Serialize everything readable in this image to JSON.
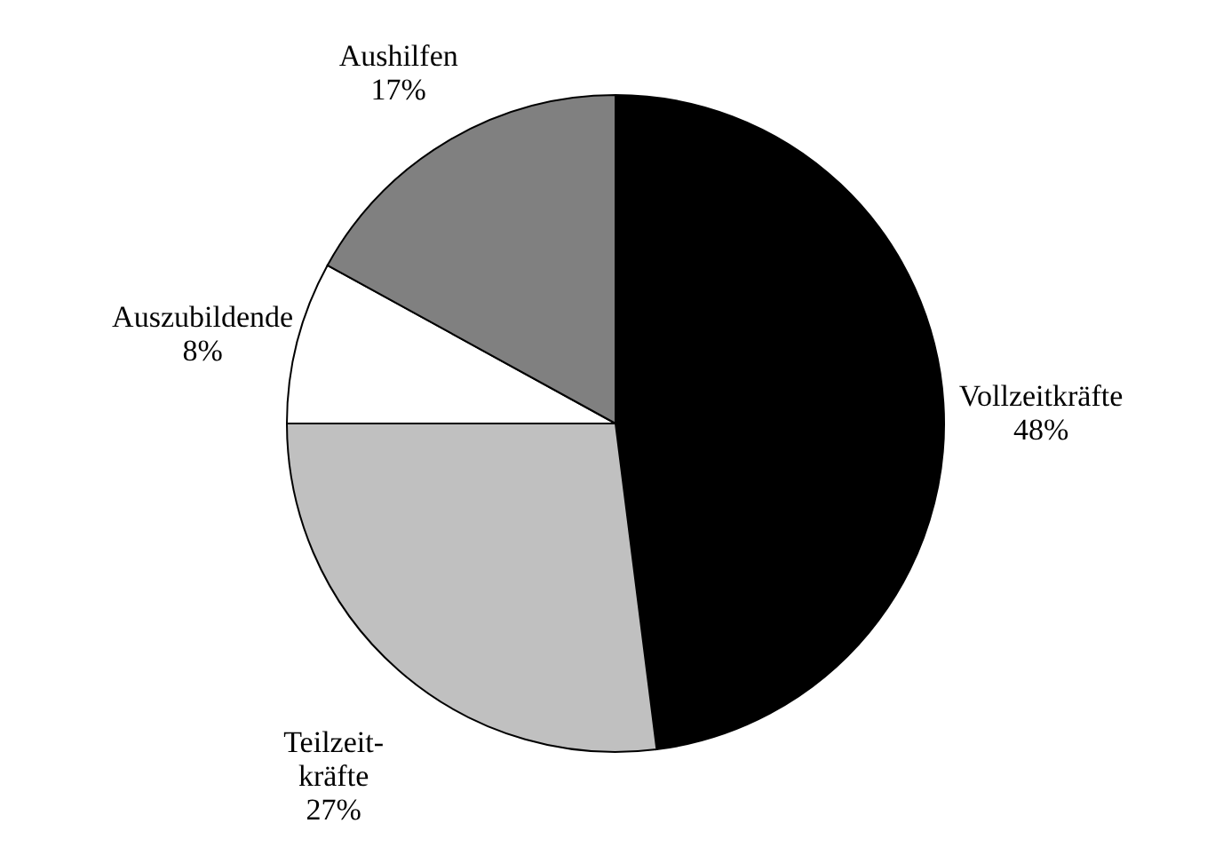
{
  "chart_data": {
    "type": "pie",
    "categories": [
      "Vollzeitkräfte",
      "Teilzeit-\nkräfte",
      "Auszubildende",
      "Aushilfen"
    ],
    "values": [
      48,
      27,
      8,
      17
    ],
    "colors": [
      "#000000",
      "#c0c0c0",
      "#ffffff",
      "#808080"
    ],
    "value_labels": [
      "48%",
      "27%",
      "8%",
      "17%"
    ]
  }
}
